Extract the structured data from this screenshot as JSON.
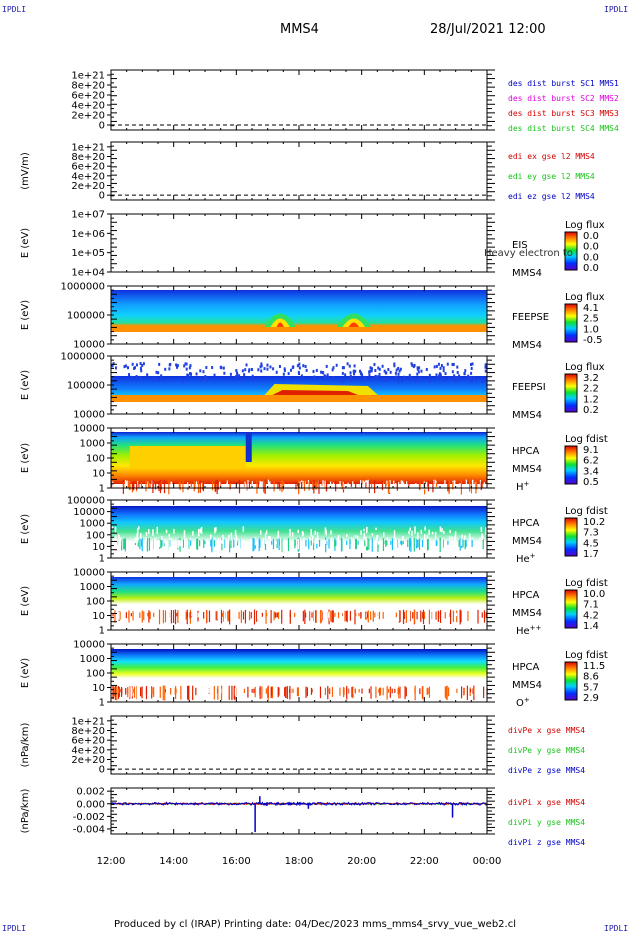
{
  "corners": {
    "top_left": "IPDLI",
    "top_right": "IPDLI",
    "bottom_left": "IPDLI",
    "bottom_right": "IPDLI"
  },
  "header": {
    "spacecraft": "MMS4",
    "datetime": "28/Jul/2021 12:00"
  },
  "footer": {
    "text": "Produced by cl (IRAP)    Printing date: 04/Dec/2023    mms_mms4_srvy_vue_web2.cl"
  },
  "colors": {
    "red": "#d40000",
    "magenta": "#e000e0",
    "green": "#18c418",
    "blue": "#0000c8",
    "orange": "#ff7f00"
  },
  "chart_data": {
    "type": "multi-panel time series / spectrogram",
    "x_ticks": [
      "12:00",
      "14:00",
      "16:00",
      "18:00",
      "20:00",
      "22:00",
      "00:00"
    ],
    "x_range": [
      "12:00",
      "00:00"
    ],
    "panels": [
      {
        "id": "p1",
        "kind": "line",
        "ylabel": "",
        "ytick_labels": [
          "1e+21",
          "8e+20",
          "6e+20",
          "4e+20",
          "2e+20",
          "0"
        ],
        "ytick_values": [
          1e+21,
          8e+20,
          6e+20,
          4e+20,
          2e+20,
          0
        ],
        "ylim": [
          -1e+20,
          1.1e+21
        ],
        "zero_line": true,
        "legend": [
          {
            "label": "des dist burst SC1 MMS1",
            "color": "blue"
          },
          {
            "label": "des dist burst SC2 MMS2",
            "color": "magenta"
          },
          {
            "label": "des dist burst SC3 MMS3",
            "color": "red"
          },
          {
            "label": "des dist burst SC4 MMS4",
            "color": "green"
          }
        ]
      },
      {
        "id": "p2",
        "kind": "line",
        "ylabel": "(mV/m)",
        "ytick_labels": [
          "1e+21",
          "8e+20",
          "6e+20",
          "4e+20",
          "2e+20",
          "0"
        ],
        "ytick_values": [
          1e+21,
          8e+20,
          6e+20,
          4e+20,
          2e+20,
          0
        ],
        "ylim": [
          -1e+20,
          1.1e+21
        ],
        "zero_line": true,
        "legend": [
          {
            "label": "edi ex gse l2 MMS4",
            "color": "red"
          },
          {
            "label": "edi ey gse l2 MMS4",
            "color": "green"
          },
          {
            "label": "edi ez gse l2 MMS4",
            "color": "blue"
          }
        ]
      },
      {
        "id": "p3",
        "kind": "spectrogram",
        "ylabel": "E (eV)",
        "ytick_labels": [
          "1e+07",
          "1e+06",
          "1e+05",
          "1e+04"
        ],
        "log": true,
        "ylim": [
          10000.0,
          10000000.0
        ],
        "instrument": "EIS",
        "spacecraft": "MMS4",
        "overlay": "Heavy electron to",
        "cbar_title": "Log flux",
        "cbar_labels": [
          "0.0",
          "0.0",
          "0.0",
          "0.0"
        ]
      },
      {
        "id": "p4",
        "kind": "spectrogram",
        "ylabel": "E (eV)",
        "ytick_labels": [
          "1000000",
          "100000",
          "10000"
        ],
        "log": true,
        "ylim": [
          10000.0,
          1000000.0
        ],
        "instrument": "FEEPSE",
        "spacecraft": "MMS4",
        "cbar_title": "Log flux",
        "cbar_labels": [
          "4.1",
          "2.5",
          "1.0",
          "-0.5"
        ]
      },
      {
        "id": "p5",
        "kind": "spectrogram",
        "ylabel": "E (eV)",
        "ytick_labels": [
          "1000000",
          "100000",
          "10000"
        ],
        "log": true,
        "ylim": [
          10000.0,
          1000000.0
        ],
        "instrument": "FEEPSI",
        "spacecraft": "MMS4",
        "cbar_title": "Log flux",
        "cbar_labels": [
          "3.2",
          "2.2",
          "1.2",
          "0.2"
        ]
      },
      {
        "id": "p6",
        "kind": "spectrogram",
        "ylabel": "E (eV)",
        "ytick_labels": [
          "10000",
          "1000",
          "100",
          "10",
          "1"
        ],
        "log": true,
        "ylim": [
          1,
          30000.0
        ],
        "instrument": "HPCA",
        "spacecraft": "MMS4",
        "species": "H",
        "species_sup": "+",
        "cbar_title": "Log fdist",
        "cbar_labels": [
          "9.1",
          "6.2",
          "3.4",
          "0.5"
        ]
      },
      {
        "id": "p7",
        "kind": "spectrogram",
        "ylabel": "E (eV)",
        "ytick_labels": [
          "100000",
          "10000",
          "1000",
          "100",
          "10",
          "1"
        ],
        "log": true,
        "ylim": [
          1,
          100000.0
        ],
        "instrument": "HPCA",
        "spacecraft": "MMS4",
        "species": "He",
        "species_sup": "+",
        "cbar_title": "Log fdist",
        "cbar_labels": [
          "10.2",
          "7.3",
          "4.5",
          "1.7"
        ]
      },
      {
        "id": "p8",
        "kind": "spectrogram",
        "ylabel": "E (eV)",
        "ytick_labels": [
          "10000",
          "1000",
          "100",
          "10",
          "1"
        ],
        "log": true,
        "ylim": [
          1,
          30000.0
        ],
        "instrument": "HPCA",
        "spacecraft": "MMS4",
        "species": "He",
        "species_sup": "++",
        "cbar_title": "Log fdist",
        "cbar_labels": [
          "10.0",
          "7.1",
          "4.2",
          "1.4"
        ]
      },
      {
        "id": "p9",
        "kind": "spectrogram",
        "ylabel": "E (eV)",
        "ytick_labels": [
          "10000",
          "1000",
          "100",
          "10",
          "1"
        ],
        "log": true,
        "ylim": [
          1,
          30000.0
        ],
        "instrument": "HPCA",
        "spacecraft": "MMS4",
        "species": "O",
        "species_sup": "+",
        "cbar_title": "Log fdist",
        "cbar_labels": [
          "11.5",
          "8.6",
          "5.7",
          "2.9"
        ]
      },
      {
        "id": "p10",
        "kind": "line",
        "ylabel": "(nPa/km)",
        "ytick_labels": [
          "1e+21",
          "8e+20",
          "6e+20",
          "4e+20",
          "2e+20",
          "0"
        ],
        "ytick_values": [
          1e+21,
          8e+20,
          6e+20,
          4e+20,
          2e+20,
          0
        ],
        "ylim": [
          -1e+20,
          1.1e+21
        ],
        "zero_line": true,
        "legend": [
          {
            "label": "divPe x gse MMS4",
            "color": "red"
          },
          {
            "label": "divPe y gse MMS4",
            "color": "green"
          },
          {
            "label": "divPe z gse MMS4",
            "color": "blue"
          }
        ]
      },
      {
        "id": "p11",
        "kind": "line",
        "ylabel": "(nPa/km)",
        "ytick_labels": [
          "0.002",
          "0.000",
          "-0.002",
          "-0.004"
        ],
        "ytick_values": [
          0.002,
          0.0,
          -0.002,
          -0.004
        ],
        "ylim": [
          -0.0048,
          0.0025
        ],
        "legend": [
          {
            "label": "divPi x gse MMS4",
            "color": "red"
          },
          {
            "label": "divPi y gse MMS4",
            "color": "green"
          },
          {
            "label": "divPi z gse MMS4",
            "color": "blue"
          }
        ],
        "series": [
          {
            "name": "divPi z gse MMS4",
            "color": "blue",
            "baseline": 0.0,
            "spikes": [
              {
                "t": 16.6,
                "v": -0.0045
              },
              {
                "t": 16.75,
                "v": 0.0012
              },
              {
                "t": 18.3,
                "v": -0.0008
              },
              {
                "t": 22.9,
                "v": -0.0022
              }
            ]
          }
        ]
      }
    ]
  }
}
